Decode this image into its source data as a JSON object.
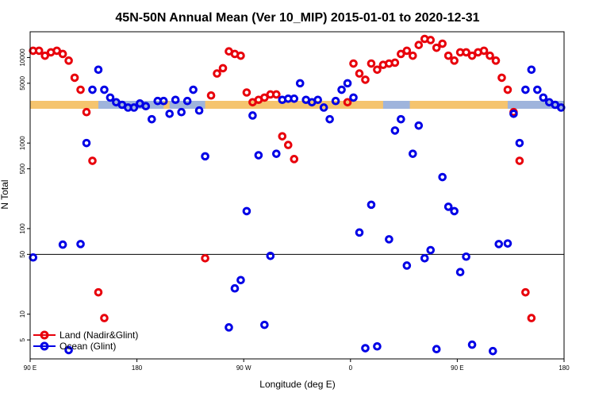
{
  "chart_data": {
    "type": "scatter",
    "title": "45N-50N Annual Mean (Ver 10_MIP)   2015-01-01 to 2020-12-31",
    "xlabel": "Longitude (deg E)",
    "ylabel": "N Total",
    "xlim": [
      0,
      360
    ],
    "ylim": [
      3,
      20000
    ],
    "yscale": "log",
    "x_ticks": [
      {
        "value": 0,
        "label": "90 E"
      },
      {
        "value": 72,
        "label": "180"
      },
      {
        "value": 144,
        "label": "90 W"
      },
      {
        "value": 216,
        "label": "0"
      },
      {
        "value": 288,
        "label": "90 E"
      },
      {
        "value": 360,
        "label": "180"
      }
    ],
    "y_ticks": [
      {
        "value": 5,
        "label": "5"
      },
      {
        "value": 10,
        "label": "10"
      },
      {
        "value": 50,
        "label": "50"
      },
      {
        "value": 100,
        "label": "100"
      },
      {
        "value": 500,
        "label": "500"
      },
      {
        "value": 1000,
        "label": "1000"
      },
      {
        "value": 5000,
        "label": "5000"
      },
      {
        "value": 10000,
        "label": "10000"
      }
    ],
    "reference_line": 50,
    "band": {
      "y": 2800,
      "color_land": "#f5c46e",
      "color_ocean": "#9fb4dc"
    },
    "legend_position": "bottom-left",
    "series": [
      {
        "name": "Land (Nadir&Glint)",
        "color": "#e8000b",
        "points": [
          [
            2,
            12000
          ],
          [
            6,
            12000
          ],
          [
            10,
            10500
          ],
          [
            14,
            11500
          ],
          [
            18,
            12000
          ],
          [
            22,
            11000
          ],
          [
            26,
            9200
          ],
          [
            30,
            5800
          ],
          [
            34,
            4200
          ],
          [
            38,
            2300
          ],
          [
            42,
            620
          ],
          [
            46,
            18
          ],
          [
            50,
            9
          ],
          [
            118,
            45
          ],
          [
            122,
            3600
          ],
          [
            126,
            6500
          ],
          [
            130,
            7500
          ],
          [
            134,
            11800
          ],
          [
            138,
            11000
          ],
          [
            142,
            10500
          ],
          [
            146,
            3900
          ],
          [
            150,
            3000
          ],
          [
            154,
            3200
          ],
          [
            158,
            3400
          ],
          [
            162,
            3700
          ],
          [
            166,
            3700
          ],
          [
            170,
            1200
          ],
          [
            174,
            950
          ],
          [
            178,
            650
          ],
          [
            214,
            3000
          ],
          [
            218,
            8500
          ],
          [
            222,
            6500
          ],
          [
            226,
            5500
          ],
          [
            230,
            8500
          ],
          [
            234,
            7200
          ],
          [
            238,
            8200
          ],
          [
            242,
            8500
          ],
          [
            246,
            8700
          ],
          [
            250,
            11000
          ],
          [
            254,
            12000
          ],
          [
            258,
            10500
          ],
          [
            262,
            14000
          ],
          [
            266,
            16500
          ],
          [
            270,
            16000
          ],
          [
            274,
            13000
          ],
          [
            278,
            14500
          ],
          [
            282,
            10500
          ],
          [
            286,
            9200
          ],
          [
            290,
            11500
          ],
          [
            294,
            11500
          ],
          [
            298,
            10500
          ],
          [
            302,
            11500
          ],
          [
            306,
            12000
          ],
          [
            310,
            10500
          ],
          [
            314,
            9200
          ],
          [
            318,
            5800
          ],
          [
            322,
            4200
          ],
          [
            326,
            2300
          ],
          [
            330,
            620
          ],
          [
            334,
            18
          ],
          [
            338,
            9
          ]
        ]
      },
      {
        "name": "Ocean (Glint)",
        "color": "#0000e6",
        "points": [
          [
            2,
            46
          ],
          [
            22,
            65
          ],
          [
            26,
            3.8
          ],
          [
            34,
            66
          ],
          [
            38,
            1000
          ],
          [
            42,
            4200
          ],
          [
            46,
            7200
          ],
          [
            50,
            4200
          ],
          [
            54,
            3400
          ],
          [
            58,
            3000
          ],
          [
            62,
            2800
          ],
          [
            66,
            2600
          ],
          [
            70,
            2600
          ],
          [
            74,
            2900
          ],
          [
            78,
            2700
          ],
          [
            82,
            1900
          ],
          [
            86,
            3100
          ],
          [
            90,
            3100
          ],
          [
            94,
            2200
          ],
          [
            98,
            3200
          ],
          [
            102,
            2300
          ],
          [
            106,
            3100
          ],
          [
            110,
            4200
          ],
          [
            114,
            2400
          ],
          [
            118,
            700
          ],
          [
            134,
            7
          ],
          [
            138,
            20
          ],
          [
            142,
            25
          ],
          [
            146,
            160
          ],
          [
            150,
            2100
          ],
          [
            154,
            720
          ],
          [
            158,
            7.5
          ],
          [
            162,
            48
          ],
          [
            166,
            750
          ],
          [
            170,
            3200
          ],
          [
            174,
            3300
          ],
          [
            178,
            3300
          ],
          [
            182,
            5000
          ],
          [
            186,
            3200
          ],
          [
            190,
            3000
          ],
          [
            194,
            3200
          ],
          [
            198,
            2600
          ],
          [
            202,
            1900
          ],
          [
            206,
            3100
          ],
          [
            210,
            4200
          ],
          [
            214,
            5000
          ],
          [
            218,
            3400
          ],
          [
            222,
            90
          ],
          [
            226,
            4
          ],
          [
            230,
            190
          ],
          [
            234,
            4.2
          ],
          [
            242,
            75
          ],
          [
            246,
            1400
          ],
          [
            250,
            1900
          ],
          [
            254,
            37
          ],
          [
            258,
            750
          ],
          [
            262,
            1600
          ],
          [
            266,
            45
          ],
          [
            270,
            56
          ],
          [
            274,
            3.9
          ],
          [
            278,
            400
          ],
          [
            282,
            180
          ],
          [
            286,
            160
          ],
          [
            290,
            31
          ],
          [
            294,
            47
          ],
          [
            298,
            4.4
          ],
          [
            312,
            3.7
          ],
          [
            316,
            66
          ],
          [
            322,
            67
          ],
          [
            326,
            2200
          ],
          [
            330,
            1000
          ],
          [
            334,
            4200
          ],
          [
            338,
            7200
          ],
          [
            342,
            4200
          ],
          [
            346,
            3400
          ],
          [
            350,
            3000
          ],
          [
            354,
            2800
          ],
          [
            358,
            2600
          ],
          [
            362,
            2600
          ]
        ]
      }
    ]
  }
}
